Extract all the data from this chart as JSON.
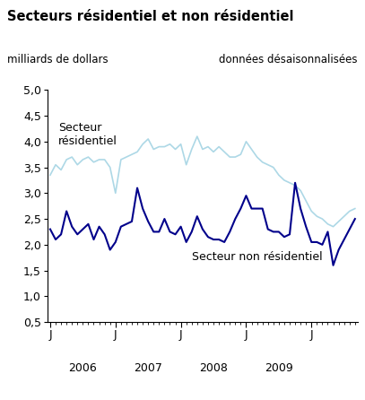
{
  "title": "Secteurs résidentiel et non résidentiel",
  "ylabel_left": "milliards de dollars",
  "ylabel_right": "données désaisonnalisées",
  "ylim": [
    0.5,
    5.0
  ],
  "yticks": [
    0.5,
    1.0,
    1.5,
    2.0,
    2.5,
    3.0,
    3.5,
    4.0,
    4.5,
    5.0
  ],
  "background_color": "#ffffff",
  "light_blue_color": "#add8e6",
  "dark_blue_color": "#00008B",
  "label_residential": "Secteur\nrésidentiel",
  "label_non_residential": "Secteur non résidentiel",
  "x_tick_labels": [
    "J",
    "J",
    "J",
    "J",
    "J"
  ],
  "x_year_labels": [
    "2006",
    "2007",
    "2008",
    "2009"
  ],
  "residential": [
    3.35,
    3.55,
    3.45,
    3.65,
    3.7,
    3.55,
    3.65,
    3.7,
    3.6,
    3.65,
    3.65,
    3.5,
    3.0,
    3.65,
    3.7,
    3.75,
    3.8,
    3.95,
    4.05,
    3.85,
    3.9,
    3.9,
    3.95,
    3.85,
    3.95,
    3.55,
    3.85,
    4.1,
    3.85,
    3.9,
    3.8,
    3.9,
    3.8,
    3.7,
    3.7,
    3.75,
    4.0,
    3.85,
    3.7,
    3.6,
    3.55,
    3.5,
    3.35,
    3.25,
    3.2,
    3.15,
    3.05,
    2.85,
    2.65,
    2.55,
    2.5,
    2.4,
    2.35,
    2.45,
    2.55,
    2.65,
    2.7
  ],
  "non_residential": [
    2.3,
    2.1,
    2.2,
    2.65,
    2.35,
    2.2,
    2.3,
    2.4,
    2.1,
    2.35,
    2.2,
    1.9,
    2.05,
    2.35,
    2.4,
    2.45,
    3.1,
    2.7,
    2.45,
    2.25,
    2.25,
    2.5,
    2.25,
    2.2,
    2.35,
    2.05,
    2.25,
    2.55,
    2.3,
    2.15,
    2.1,
    2.1,
    2.05,
    2.25,
    2.5,
    2.7,
    2.95,
    2.7,
    2.7,
    2.7,
    2.3,
    2.25,
    2.25,
    2.15,
    2.2,
    3.2,
    2.7,
    2.35,
    2.05,
    2.05,
    2.0,
    2.25,
    1.6,
    1.9,
    2.1,
    2.3,
    2.5
  ]
}
